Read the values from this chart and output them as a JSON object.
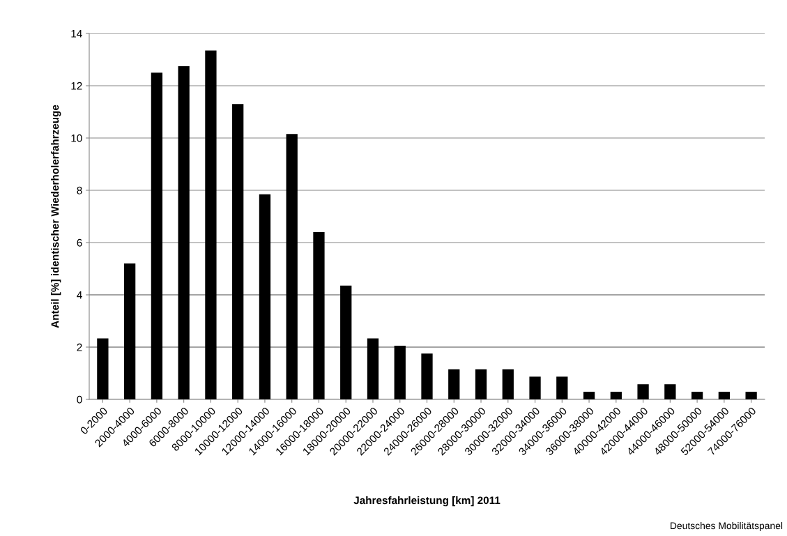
{
  "chart_data": {
    "type": "bar",
    "xlabel": "Jahresfahrleistung [km] 2011",
    "ylabel": "Anteil [%] identischer Wiederholerfahrzeuge",
    "categories": [
      "0-2000",
      "2000-4000",
      "4000-6000",
      "6000-8000",
      "8000-10000",
      "10000-12000",
      "12000-14000",
      "14000-16000",
      "16000-18000",
      "18000-20000",
      "20000-22000",
      "22000-24000",
      "24000-26000",
      "26000-28000",
      "28000-30000",
      "30000-32000",
      "32000-34000",
      "34000-36000",
      "36000-38000",
      "40000-42000",
      "42000-44000",
      "44000-46000",
      "48000-50000",
      "52000-54000",
      "74000-76000"
    ],
    "values": [
      2.33,
      5.2,
      12.5,
      12.75,
      13.35,
      11.3,
      7.85,
      10.15,
      6.4,
      4.35,
      2.33,
      2.05,
      1.75,
      1.15,
      1.15,
      1.15,
      0.87,
      0.87,
      0.29,
      0.29,
      0.58,
      0.58,
      0.29,
      0.29,
      0.29
    ],
    "color": "#000000",
    "ylim": [
      0,
      14
    ],
    "yticks": [
      0,
      2,
      4,
      6,
      8,
      10,
      12,
      14
    ],
    "grid": "y",
    "annotations": [
      "Deutsches Mobilitätspanel"
    ]
  }
}
